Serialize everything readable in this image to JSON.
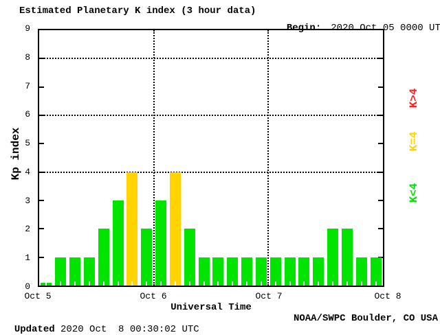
{
  "header": {
    "title": "Estimated Planetary K index (3 hour data)",
    "begin_label": "Begin:",
    "begin_value": "2020 Oct 05 0000 UTC"
  },
  "y_axis": {
    "label": "Kp index",
    "tick_labels": [
      "0",
      "1",
      "2",
      "3",
      "4",
      "5",
      "6",
      "7",
      "8",
      "9"
    ],
    "min": 0,
    "max": 9
  },
  "x_axis": {
    "labels": [
      "Oct 5",
      "Oct 6",
      "Oct 7",
      "Oct 8"
    ],
    "title": "Universal Time"
  },
  "legend": [
    {
      "text": "K>4",
      "color": "#ff2020"
    },
    {
      "text": "K=4",
      "color": "#ffd400"
    },
    {
      "text": "K<4",
      "color": "#00e400"
    }
  ],
  "footer": {
    "updated_label": "Updated",
    "updated_value": "2020 Oct  8 00:30:02 UTC",
    "source": "NOAA/SWPC Boulder, CO USA"
  },
  "chart_data": {
    "type": "bar",
    "title": "Estimated Planetary K index (3 hour data)",
    "begin": "2020 Oct 05 0000 UTC",
    "xlabel": "Universal Time",
    "ylabel": "Kp index",
    "ylim": [
      0,
      9
    ],
    "grid": "dotted horizontal lines at Kp 4, 6, 8; dotted vertical lines at day boundaries",
    "y_gridlines": [
      4,
      6,
      8
    ],
    "day_boundaries": [
      "Oct 6",
      "Oct 7"
    ],
    "days": [
      "Oct 5",
      "Oct 6",
      "Oct 7"
    ],
    "bars_per_day": 8,
    "interval_hours": 3,
    "values": [
      0,
      1,
      1,
      1,
      2,
      3,
      4,
      2,
      3,
      4,
      2,
      1,
      1,
      1,
      1,
      1,
      1,
      1,
      1,
      1,
      2,
      2,
      1,
      1
    ],
    "colors": {
      "k_lt_4": "#00e400",
      "k_eq_4": "#ffd400",
      "k_gt_4": "#ff2020"
    },
    "bar_color_rule": "green if K<4, yellow if K=4, red if K>4"
  }
}
